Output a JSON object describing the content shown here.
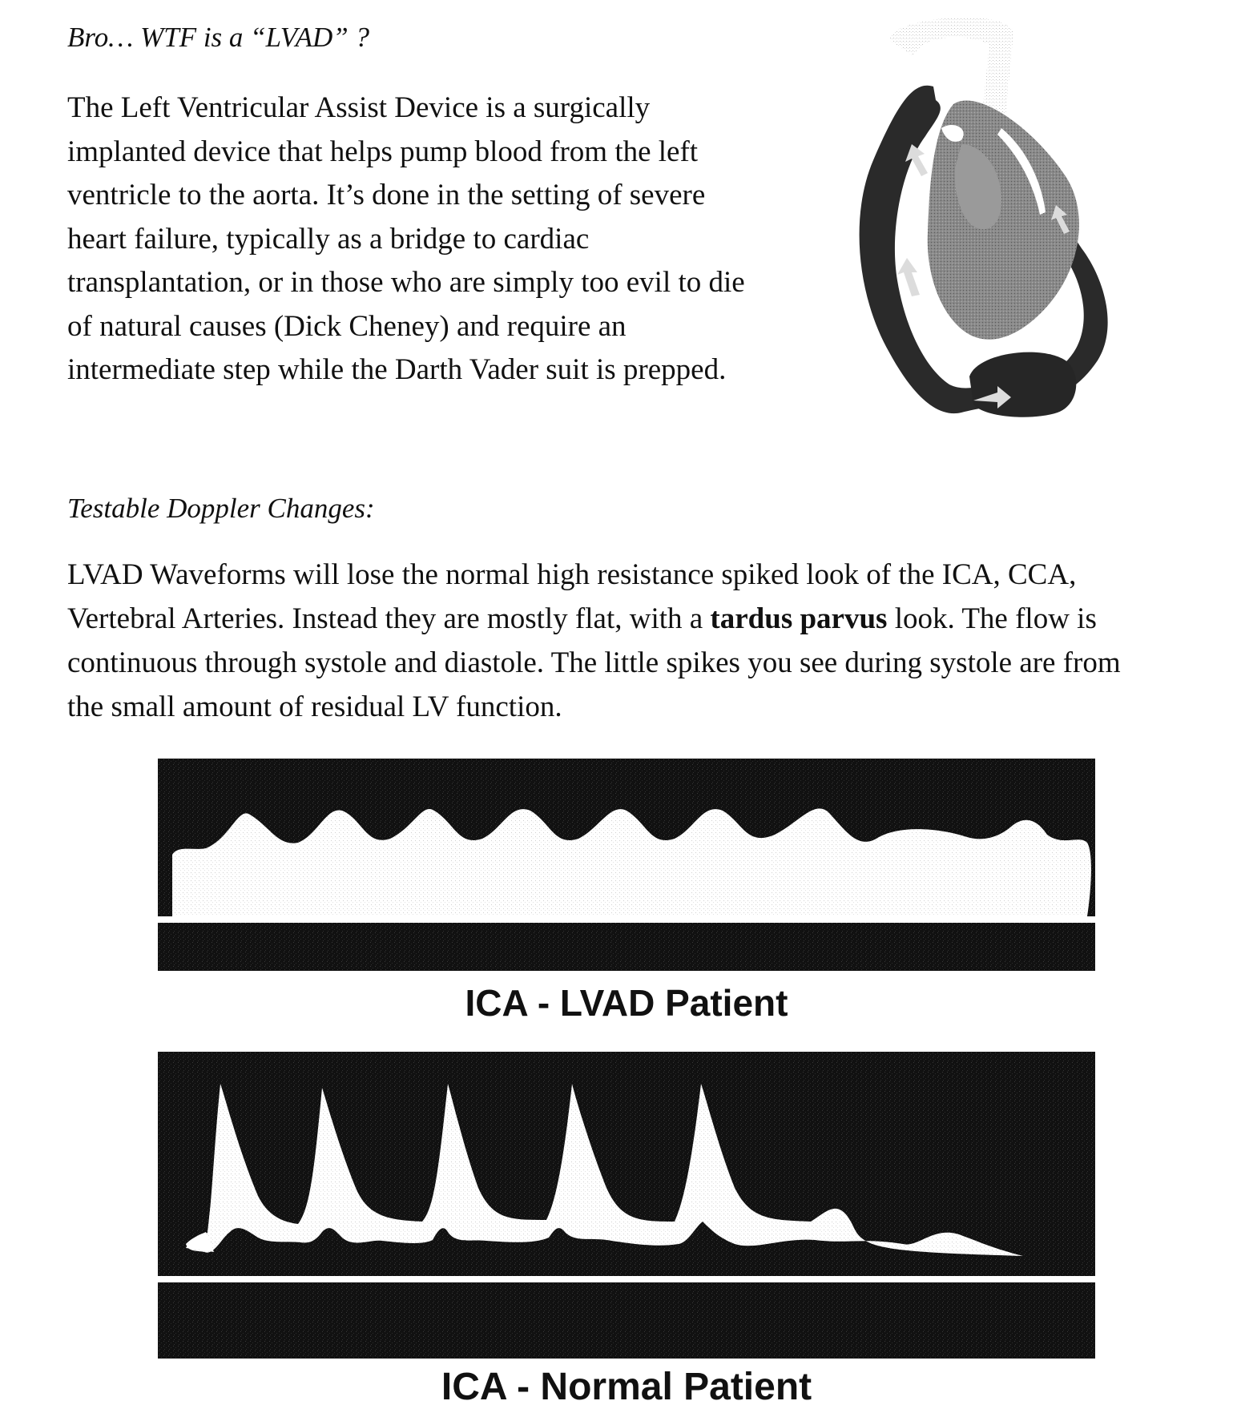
{
  "intro": {
    "question": "Bro… WTF is a “LVAD” ?",
    "lines": [
      "The Left Ventricular Assist Device is a surgically",
      "implanted device that helps pump blood from the left",
      "ventricle to the aorta. It’s done in the setting of severe",
      "heart failure, typically as a bridge to cardiac",
      "transplantation, or in those who are simply too evil to die",
      "of natural causes (Dick Cheney) and require an",
      "intermediate step while the Darth Vader suit is prepped."
    ]
  },
  "heart_illustration": {
    "icon": "heart-lvad-diagram-icon"
  },
  "doppler": {
    "title": "Testable Doppler Changes:",
    "line1": "LVAD Waveforms will lose the normal high resistance spiked look of the ICA, CCA,",
    "line2_before": "Vertebral Arteries.   Instead they are mostly flat, with a ",
    "line2_bold": "tardus parvus",
    "line2_after": " look.  The flow is",
    "line3": "continuous through systole and diastole.  The little spikes you see during systole are from",
    "line4": "the small amount of residual LV function."
  },
  "waveforms": {
    "lvad": {
      "caption": "ICA - LVAD Patient"
    },
    "normal": {
      "caption": "ICA - Normal Patient"
    }
  }
}
